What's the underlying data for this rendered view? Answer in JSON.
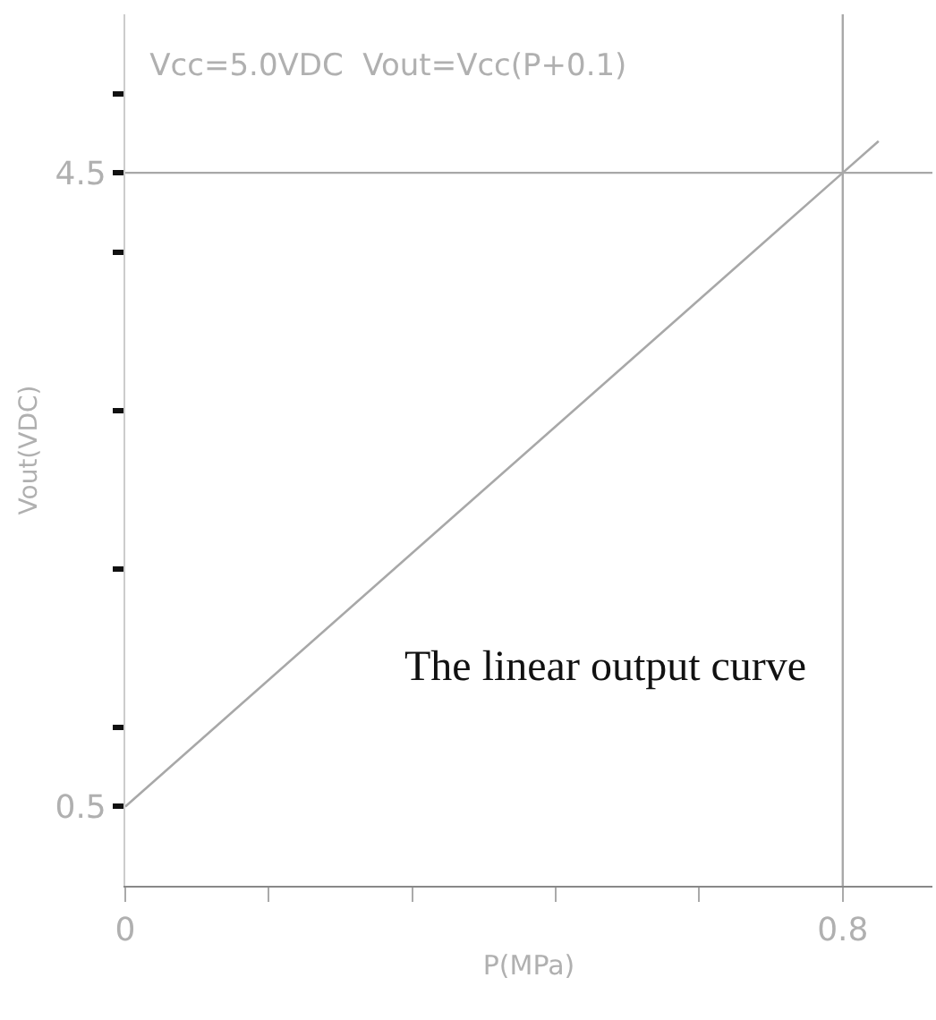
{
  "chart_data": {
    "type": "line",
    "title": "Vcc=5.0VDC  Vout=Vcc(P+0.1)",
    "xlabel": "P(MPa)",
    "ylabel": "Vout(VDC)",
    "x": [
      0,
      0.8,
      0.84
    ],
    "series": [
      {
        "color": "#a8a8a8",
        "values": [
          0.5,
          4.5,
          4.7
        ]
      }
    ],
    "xlim": [
      0,
      0.9
    ],
    "ylim": [
      0,
      5.5
    ],
    "xticks": [
      0,
      {
        "value": 0.16,
        "label": null
      },
      {
        "value": 0.32,
        "label": null
      },
      {
        "value": 0.48,
        "label": null
      },
      {
        "value": 0.64,
        "label": null
      },
      0.8
    ],
    "yticks": [
      0.5,
      {
        "value": 1,
        "label": null
      },
      {
        "value": 2,
        "label": null
      },
      {
        "value": 3,
        "label": null
      },
      {
        "value": 4,
        "label": null
      },
      4.5,
      {
        "value": 5,
        "label": null
      }
    ],
    "ref_lines": [
      {
        "axis": "y",
        "value": 4.5,
        "label": null,
        "color": "#a8a8a8"
      },
      {
        "axis": "x",
        "value": 0.8,
        "label": null,
        "color": "#a8a8a8"
      }
    ],
    "annotations": [
      "The linear output curve"
    ],
    "marker": "none",
    "line_style": "solid"
  }
}
